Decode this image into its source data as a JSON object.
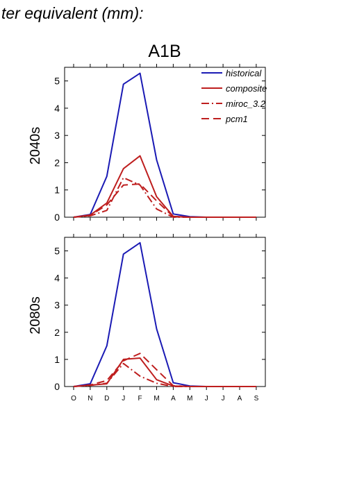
{
  "page_title": "ter equivalent (mm):",
  "figure_title": "A1B",
  "colors": {
    "historical": "#1a1ab4",
    "scenario": "#be1e1e",
    "axis": "#000000"
  },
  "chart_data": [
    {
      "type": "line",
      "title": "A1B",
      "ylabel": "2040s",
      "xlabel": "",
      "categories": [
        "O",
        "N",
        "D",
        "J",
        "F",
        "M",
        "A",
        "M",
        "J",
        "J",
        "A",
        "S"
      ],
      "ylim": [
        0,
        5.5
      ],
      "yticks": [
        0,
        1,
        2,
        3,
        4,
        5
      ],
      "show_x_tick_labels": false,
      "grid": false,
      "legend": "top-right",
      "series": [
        {
          "name": "historical",
          "color": "#1a1ab4",
          "dash": "solid",
          "values": [
            0.0,
            0.1,
            1.5,
            4.88,
            5.28,
            2.1,
            0.12,
            0.02,
            0.0,
            0.0,
            0.0,
            0.0
          ]
        },
        {
          "name": "composite",
          "color": "#be1e1e",
          "dash": "solid",
          "values": [
            0.0,
            0.08,
            0.52,
            1.78,
            2.25,
            0.75,
            0.03,
            0.0,
            0.0,
            0.0,
            0.0,
            0.0
          ]
        },
        {
          "name": "miroc_3.2",
          "color": "#be1e1e",
          "dash": "dashdot",
          "values": [
            0.0,
            0.05,
            0.25,
            1.45,
            1.18,
            0.3,
            0.0,
            0.0,
            0.0,
            0.0,
            0.0,
            0.0
          ]
        },
        {
          "name": "pcm1",
          "color": "#be1e1e",
          "dash": "dash",
          "values": [
            0.0,
            0.06,
            0.45,
            1.18,
            1.22,
            0.6,
            0.02,
            0.0,
            0.0,
            0.0,
            0.0,
            0.0
          ]
        }
      ]
    },
    {
      "type": "line",
      "title": "",
      "ylabel": "2080s",
      "xlabel": "",
      "categories": [
        "O",
        "N",
        "D",
        "J",
        "F",
        "M",
        "A",
        "M",
        "J",
        "J",
        "A",
        "S"
      ],
      "ylim": [
        0,
        5.5
      ],
      "yticks": [
        0,
        1,
        2,
        3,
        4,
        5
      ],
      "show_x_tick_labels": true,
      "grid": false,
      "legend": "none",
      "series": [
        {
          "name": "historical",
          "color": "#1a1ab4",
          "dash": "solid",
          "values": [
            0.0,
            0.1,
            1.5,
            4.88,
            5.3,
            2.12,
            0.14,
            0.02,
            0.0,
            0.0,
            0.0,
            0.0
          ]
        },
        {
          "name": "composite",
          "color": "#be1e1e",
          "dash": "solid",
          "values": [
            0.0,
            0.05,
            0.1,
            1.0,
            1.05,
            0.25,
            0.02,
            0.0,
            0.0,
            0.0,
            0.0,
            0.0
          ]
        },
        {
          "name": "miroc_3.2",
          "color": "#be1e1e",
          "dash": "dashdot",
          "values": [
            0.0,
            0.04,
            0.12,
            0.85,
            0.38,
            0.12,
            0.0,
            0.0,
            0.0,
            0.0,
            0.0,
            0.0
          ]
        },
        {
          "name": "pcm1",
          "color": "#be1e1e",
          "dash": "dash",
          "values": [
            0.0,
            0.06,
            0.22,
            0.95,
            1.22,
            0.62,
            0.03,
            0.0,
            0.0,
            0.0,
            0.0,
            0.0
          ]
        }
      ]
    }
  ]
}
